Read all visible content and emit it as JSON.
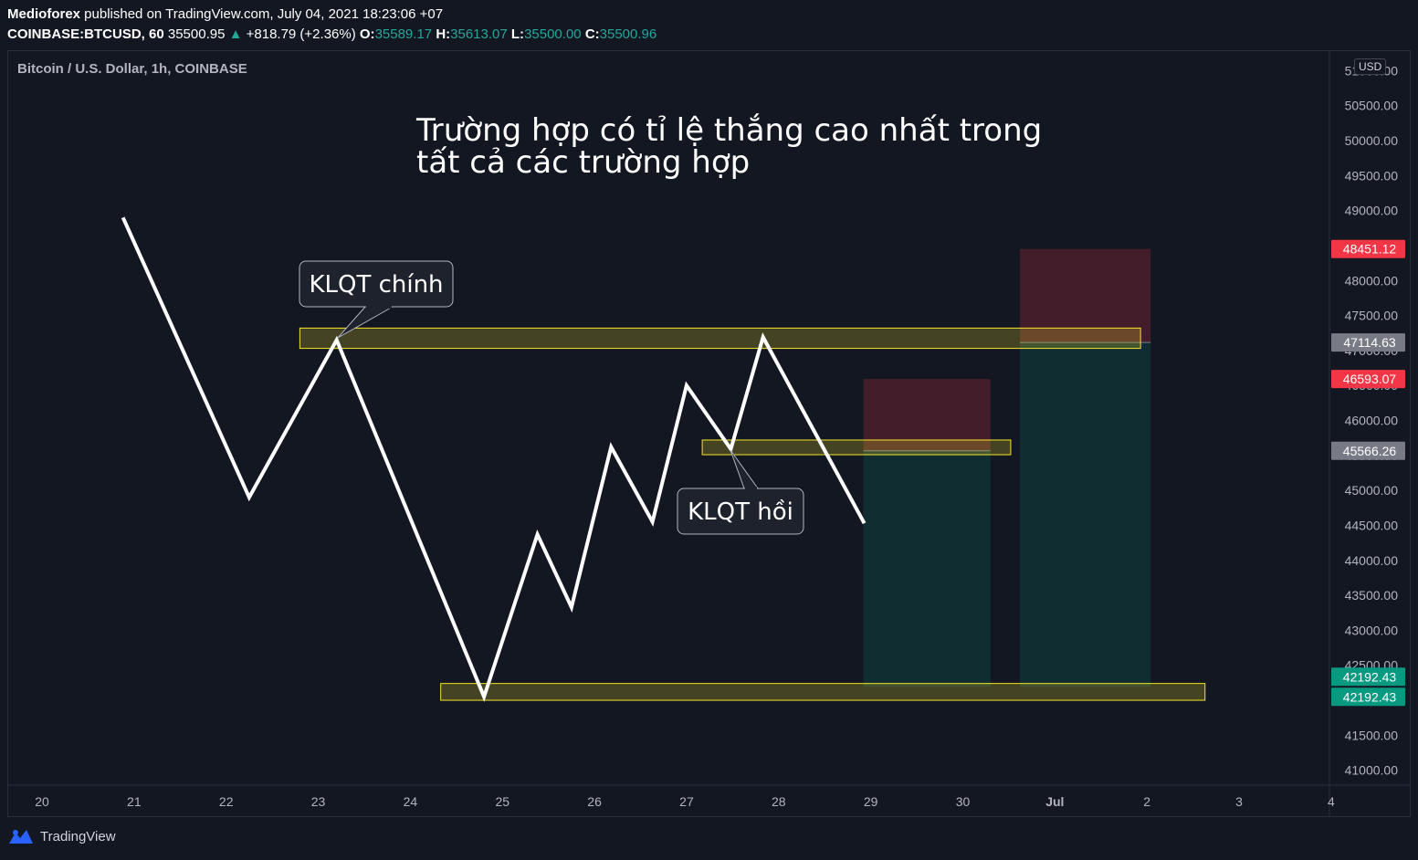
{
  "header": {
    "line1_author": "Medioforex",
    "line1_rest": " published on TradingView.com, July 04, 2021 18:23:06 +07",
    "symbol": "COINBASE:BTCUSD, 60",
    "last": " 35500.95 ",
    "change": "+818.79 (+2.36%)",
    "o_label": "O:",
    "o_value": "35589.17",
    "h_label": "H:",
    "h_value": "35613.07",
    "l_label": "L:",
    "l_value": "35500.00",
    "c_label": "C:",
    "c_value": "35500.96"
  },
  "chart": {
    "title": "Bitcoin / U.S. Dollar, 1h, COINBASE",
    "annotation_main": "Trường hợp có tỉ lệ thắng cao nhất trong",
    "annotation_main_2": "tất cả các trường hợp",
    "callout_1": "KLQT chính",
    "callout_2": "KLQT hồi",
    "currency": "USD"
  },
  "chart_data": {
    "type": "line",
    "x_ticks": [
      "20",
      "21",
      "22",
      "23",
      "24",
      "25",
      "26",
      "27",
      "28",
      "29",
      "30",
      "Jul",
      "2",
      "3",
      "4"
    ],
    "y_ticks": [
      "51000.00",
      "50500.00",
      "50000.00",
      "49500.00",
      "49000.00",
      "48500.00",
      "48000.00",
      "47500.00",
      "47000.00",
      "46500.00",
      "46000.00",
      "45500.00",
      "45000.00",
      "44500.00",
      "44000.00",
      "43500.00",
      "43000.00",
      "42500.00",
      "42000.00",
      "41500.00",
      "41000.00"
    ],
    "ylim": [
      40850,
      51200
    ],
    "xlim": [
      19.6,
      33.2
    ],
    "line": {
      "x": [
        20.88,
        22.25,
        23.2,
        24.8,
        25.38,
        25.75,
        26.18,
        26.63,
        27.0,
        27.48,
        27.83,
        28.93
      ],
      "y": [
        48900,
        44900,
        47150,
        42050,
        44370,
        43330,
        45620,
        44550,
        46500,
        45590,
        47190,
        44530
      ]
    },
    "price_labels": [
      {
        "value": "48451.12",
        "color": "#f23645"
      },
      {
        "value": "47114.63",
        "color": "#787b86"
      },
      {
        "value": "46593.07",
        "color": "#f23645"
      },
      {
        "value": "45566.26",
        "color": "#787b86"
      },
      {
        "value": "42192.43",
        "color": "#089981"
      },
      {
        "value": "42192.43",
        "color": "#089981"
      }
    ],
    "zones": [
      {
        "x1": 22.8,
        "x2": 31.93,
        "y1": 47030,
        "y2": 47320
      },
      {
        "x1": 27.17,
        "x2": 30.52,
        "y1": 45510,
        "y2": 45720
      },
      {
        "x1": 24.33,
        "x2": 32.63,
        "y1": 42000,
        "y2": 42240
      }
    ],
    "positions": [
      {
        "x1": 28.92,
        "x2": 30.3,
        "entry": 45566.26,
        "stop": 46593.07,
        "target": 42192.43
      },
      {
        "x1": 30.62,
        "x2": 32.04,
        "entry": 47114.63,
        "stop": 48451.12,
        "target": 42192.43
      }
    ]
  },
  "footer": {
    "brand": "TradingView"
  },
  "colors": {
    "background": "#131722",
    "up": "#26a69a",
    "down": "#f23645",
    "zone": "#f7e52a",
    "grid": "#2a2e39"
  }
}
